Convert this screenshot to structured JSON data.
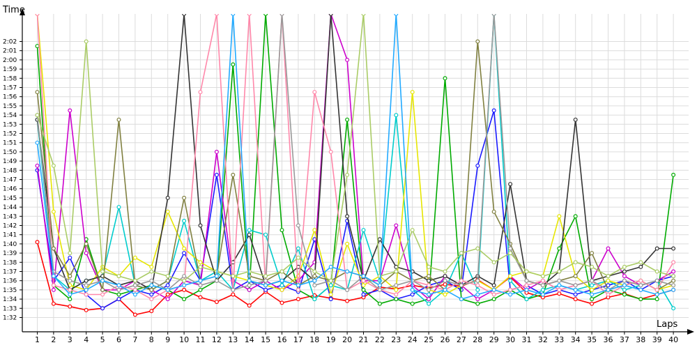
{
  "chart_data": {
    "type": "line",
    "title": "",
    "ylabel": "Time",
    "xlabel": "Laps",
    "x": [
      1,
      2,
      3,
      4,
      5,
      6,
      7,
      8,
      9,
      10,
      11,
      12,
      13,
      14,
      15,
      16,
      17,
      18,
      19,
      20,
      21,
      22,
      23,
      24,
      25,
      26,
      27,
      28,
      29,
      30,
      31,
      32,
      33,
      34,
      35,
      36,
      37,
      38,
      39,
      40
    ],
    "x_tick_labels": [
      "1",
      "2",
      "3",
      "4",
      "5",
      "6",
      "7",
      "8",
      "9",
      "10",
      "11",
      "12",
      "13",
      "14",
      "15",
      "16",
      "17",
      "18",
      "19",
      "20",
      "21",
      "22",
      "23",
      "24",
      "25",
      "26",
      "27",
      "28",
      "29",
      "30",
      "31",
      "32",
      "33",
      "34",
      "35",
      "36",
      "37",
      "38",
      "39",
      "40"
    ],
    "y_tick_labels": [
      "1:32",
      "1:33",
      "1:34",
      "1:35",
      "1:36",
      "1:37",
      "1:38",
      "1:39",
      "1:40",
      "1:41",
      "1:42",
      "1:43",
      "1:44",
      "1:45",
      "1:46",
      "1:47",
      "1:48",
      "1:49",
      "1:50",
      "1:51",
      "1:52",
      "1:53",
      "1:54",
      "1:55",
      "1:56",
      "1:57",
      "1:58",
      "1:59",
      "2:00",
      "2:01",
      "2:02"
    ],
    "y_unit": "seconds",
    "ylim": [
      91,
      124
    ],
    "grid": true,
    "series": [
      {
        "color": "#ff0000",
        "values": [
          100.2,
          93.5,
          93.2,
          92.8,
          93.0,
          94.0,
          92.3,
          92.7,
          94.5,
          95.0,
          94.2,
          93.7,
          94.5,
          93.3,
          94.8,
          93.6,
          94.0,
          94.4,
          94.1,
          93.8,
          94.2,
          95.3,
          95.1,
          95.5,
          95.2,
          95.6,
          95.4,
          96.1,
          95.0,
          96.4,
          94.7,
          94.2,
          94.6,
          94.0,
          93.5,
          94.2,
          94.6,
          94.0,
          94.5,
          95.0
        ]
      },
      {
        "color": "#1a1aff",
        "values": [
          108.0,
          96.0,
          98.5,
          94.5,
          93.0,
          94.0,
          95.0,
          94.5,
          95.5,
          99.0,
          96.0,
          107.5,
          95.0,
          96.0,
          95.0,
          95.5,
          94.8,
          100.5,
          94.0,
          102.5,
          94.5,
          95.0,
          94.0,
          94.5,
          95.5,
          96.0,
          95.0,
          108.5,
          114.5,
          95.0,
          95.5,
          94.5,
          95.0,
          94.5,
          95.0,
          95.5,
          96.0,
          95.0,
          96.0,
          96.5
        ]
      },
      {
        "color": "#00aa00",
        "values": [
          121.5,
          95.5,
          94.0,
          100.5,
          95.0,
          94.5,
          95.0,
          95.5,
          95.0,
          94.0,
          95.0,
          96.0,
          119.5,
          95.0,
          125.0,
          101.5,
          95.0,
          94.0,
          95.5,
          113.5,
          95.0,
          93.5,
          94.0,
          93.5,
          94.0,
          118.0,
          94.0,
          93.5,
          94.0,
          95.0,
          94.0,
          94.5,
          99.5,
          103.0,
          94.0,
          95.0,
          94.5,
          94.0,
          94.0,
          107.5
        ]
      },
      {
        "color": "#cc00cc",
        "values": [
          108.5,
          95.0,
          114.5,
          99.0,
          95.0,
          95.0,
          96.0,
          95.0,
          94.0,
          96.0,
          95.5,
          110.0,
          96.0,
          95.0,
          96.0,
          95.0,
          96.0,
          98.0,
          125.0,
          120.0,
          96.0,
          96.0,
          102.0,
          95.5,
          94.0,
          96.5,
          95.5,
          94.0,
          95.0,
          96.5,
          95.0,
          96.0,
          95.0,
          95.5,
          96.0,
          99.5,
          96.5,
          95.5,
          96.0,
          97.0
        ]
      },
      {
        "color": "#00cccc",
        "values": [
          113.5,
          96.5,
          95.0,
          96.0,
          96.5,
          104.0,
          95.5,
          95.0,
          96.0,
          102.5,
          96.0,
          97.0,
          95.0,
          101.5,
          101.0,
          95.5,
          99.5,
          94.0,
          95.5,
          95.0,
          101.5,
          96.0,
          114.0,
          95.0,
          93.5,
          95.0,
          99.0,
          95.0,
          125.0,
          96.0,
          94.0,
          95.0,
          95.5,
          95.0,
          95.5,
          96.0,
          95.0,
          95.5,
          96.0,
          93.0
        ]
      },
      {
        "color": "#e6e600",
        "values": [
          125.0,
          103.5,
          95.5,
          95.0,
          97.5,
          96.5,
          98.5,
          97.5,
          103.5,
          99.5,
          98.0,
          97.0,
          96.5,
          96.0,
          95.5,
          95.0,
          96.5,
          101.5,
          94.5,
          100.0,
          95.5,
          96.5,
          95.0,
          116.5,
          95.0,
          94.5,
          95.5,
          96.0,
          95.0,
          96.5,
          97.0,
          96.5,
          103.0,
          96.5,
          95.0,
          96.0,
          95.5,
          96.0,
          95.0,
          95.5
        ]
      },
      {
        "color": "#333333",
        "values": [
          113.5,
          99.5,
          95.0,
          96.0,
          96.5,
          95.5,
          96.0,
          95.0,
          105.0,
          125.0,
          102.0,
          96.0,
          98.0,
          101.0,
          95.5,
          96.0,
          97.5,
          96.0,
          125.0,
          103.0,
          96.0,
          100.5,
          97.5,
          97.0,
          96.0,
          96.5,
          95.5,
          96.5,
          95.5,
          106.5,
          96.0,
          95.5,
          97.0,
          113.5,
          96.0,
          96.5,
          97.0,
          97.5,
          99.5,
          99.5
        ]
      },
      {
        "color": "#808040",
        "values": [
          116.5,
          99.5,
          96.5,
          100.0,
          95.0,
          113.5,
          95.5,
          95.0,
          96.0,
          105.0,
          96.0,
          96.5,
          107.5,
          96.5,
          96.0,
          97.0,
          95.5,
          96.5,
          96.0,
          97.0,
          96.5,
          95.5,
          97.0,
          96.0,
          96.5,
          95.0,
          96.0,
          122.0,
          103.5,
          100.0,
          96.0,
          95.5,
          96.0,
          96.5,
          99.0,
          95.0,
          95.5,
          96.0,
          95.0,
          96.0
        ]
      },
      {
        "color": "#ff88aa",
        "values": [
          125.0,
          95.5,
          95.0,
          94.5,
          94.5,
          95.5,
          95.0,
          94.0,
          95.0,
          95.5,
          116.5,
          125.0,
          95.0,
          125.0,
          95.5,
          125.0,
          95.0,
          116.5,
          110.0,
          95.0,
          96.0,
          95.0,
          94.5,
          96.0,
          95.5,
          95.0,
          96.0,
          95.5,
          94.5,
          95.0,
          95.5,
          96.0,
          95.0,
          95.5,
          96.0,
          94.5,
          95.5,
          96.0,
          95.0,
          98.0
        ]
      },
      {
        "color": "#999999",
        "values": [
          114.0,
          97.0,
          96.0,
          95.5,
          96.0,
          95.0,
          95.5,
          96.0,
          95.0,
          96.5,
          95.5,
          96.0,
          95.0,
          95.5,
          96.0,
          125.0,
          102.0,
          95.5,
          96.0,
          95.0,
          96.5,
          95.0,
          95.5,
          96.0,
          95.0,
          96.0,
          95.5,
          96.0,
          125.0,
          99.5,
          96.0,
          95.5,
          96.0,
          95.5,
          96.0,
          95.0,
          96.0,
          95.5,
          96.0,
          95.5
        ]
      },
      {
        "color": "#aacc66",
        "values": [
          114.0,
          108.5,
          99.0,
          122.0,
          97.0,
          96.5,
          96.0,
          97.0,
          96.5,
          96.0,
          97.5,
          97.0,
          96.5,
          97.0,
          96.5,
          97.0,
          98.5,
          97.0,
          96.0,
          107.5,
          125.0,
          96.5,
          97.0,
          101.5,
          97.5,
          97.0,
          99.0,
          99.5,
          98.0,
          99.0,
          97.0,
          96.5,
          97.0,
          98.0,
          97.5,
          96.5,
          97.5,
          98.0,
          97.0,
          96.5
        ]
      },
      {
        "color": "#22aaff",
        "values": [
          111.0,
          96.5,
          94.5,
          95.0,
          96.0,
          95.5,
          94.5,
          95.5,
          95.0,
          95.5,
          96.0,
          96.5,
          125.0,
          96.0,
          95.5,
          96.0,
          95.5,
          96.0,
          97.5,
          97.0,
          96.5,
          95.5,
          125.0,
          95.0,
          94.5,
          95.0,
          94.0,
          94.5,
          95.0,
          94.5,
          95.0,
          94.5,
          95.5,
          95.0,
          94.5,
          95.0,
          95.5,
          95.0,
          94.5,
          95.0
        ]
      }
    ]
  }
}
